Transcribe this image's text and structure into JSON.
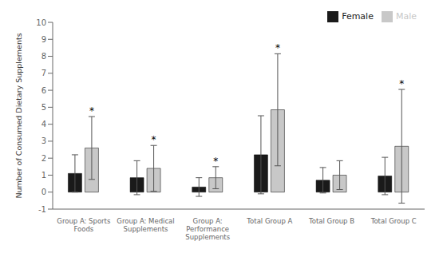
{
  "chart_data": {
    "type": "bar",
    "ylabel": "Number of Consumed Dietary Supplements",
    "categories": [
      "Group A: Sports\nFoods",
      "Group A: Medical\nSupplements",
      "Group A:\nPerformance\nSupplements",
      "Total Group A",
      "Total Group B",
      "Total Group C"
    ],
    "series": [
      {
        "name": "Female",
        "color": "#1a1a1a",
        "values": [
          1.1,
          0.85,
          0.3,
          2.2,
          0.7,
          0.95
        ],
        "errors": [
          1.1,
          1.0,
          0.55,
          2.3,
          0.75,
          1.1
        ]
      },
      {
        "name": "Male",
        "color": "#c8c8c8",
        "values": [
          2.6,
          1.4,
          0.85,
          4.85,
          1.0,
          2.7
        ],
        "errors": [
          1.85,
          1.35,
          0.65,
          3.3,
          0.85,
          3.35
        ],
        "annotations": [
          "*",
          "*",
          "*",
          "*",
          null,
          "*"
        ]
      }
    ],
    "ylim": [
      -1,
      10
    ],
    "yticks": [
      -1,
      0,
      1,
      2,
      3,
      4,
      5,
      6,
      7,
      8,
      9,
      10
    ],
    "grid": false,
    "legend": "upper right"
  }
}
